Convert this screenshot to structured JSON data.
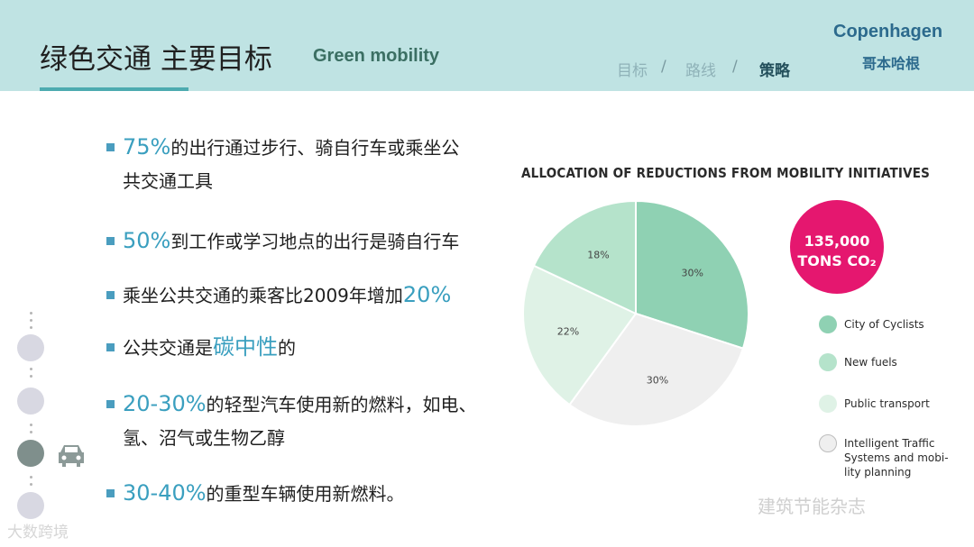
{
  "header": {
    "title_cn": "绿色交通 主要目标",
    "title_en": "Green mobility",
    "nav": [
      "目标",
      "路线",
      "策略"
    ],
    "nav_sep": "/",
    "brand_en": "Copenhagen",
    "brand_cn": "哥本哈根"
  },
  "bullets": [
    {
      "hl": "75%",
      "text": "的出行通过步行、骑自行车或乘坐公",
      "text2": "共交通工具"
    },
    {
      "hl": "50%",
      "text": "到工作或学习地点的出行是骑自行车"
    },
    {
      "pre": "乘坐公共交通的乘客比2009年增加",
      "hl": "20%"
    },
    {
      "pre": "公共交通是",
      "hl": "碳中性",
      "text": "的"
    },
    {
      "hl": "20-30%",
      "text": "的轻型汽车使用新的燃料，如电、",
      "text2": "氢、沼气或生物乙醇"
    },
    {
      "hl": "30-40%",
      "text": "的重型车辆使用新燃料。"
    }
  ],
  "chart_data": {
    "type": "pie",
    "title": "ALLOCATION OF REDUCTIONS FROM MOBILITY INITIATIVES",
    "categories": [
      "City of Cyclists",
      "Intelligent Traffic Systems and mobility planning",
      "Public transport",
      "New fuels"
    ],
    "values": [
      30,
      30,
      22,
      18
    ],
    "labels": [
      "30%",
      "30%",
      "22%",
      "18%"
    ],
    "colors": [
      "#8fd1b3",
      "#efefef",
      "#dff2e6",
      "#b5e3cb"
    ],
    "total_label": [
      "135,000",
      "TONS CO₂"
    ],
    "legend_placement": "right"
  },
  "legend": [
    {
      "label": "City of Cyclists",
      "color": "#8fd1b3"
    },
    {
      "label": "New fuels",
      "color": "#b5e3cb"
    },
    {
      "label": "Public transport",
      "color": "#dff2e6"
    },
    {
      "label": "Intelligent Traffic Systems and mobi- lity planning",
      "color": "#efefef"
    }
  ],
  "colors": {
    "header_bg": "#bfe3e3",
    "accent": "#3a9fbf",
    "badge": "#e5176f",
    "brand": "#2c6a8d"
  },
  "watermarks": [
    "建筑节能杂志",
    "大数跨境"
  ]
}
